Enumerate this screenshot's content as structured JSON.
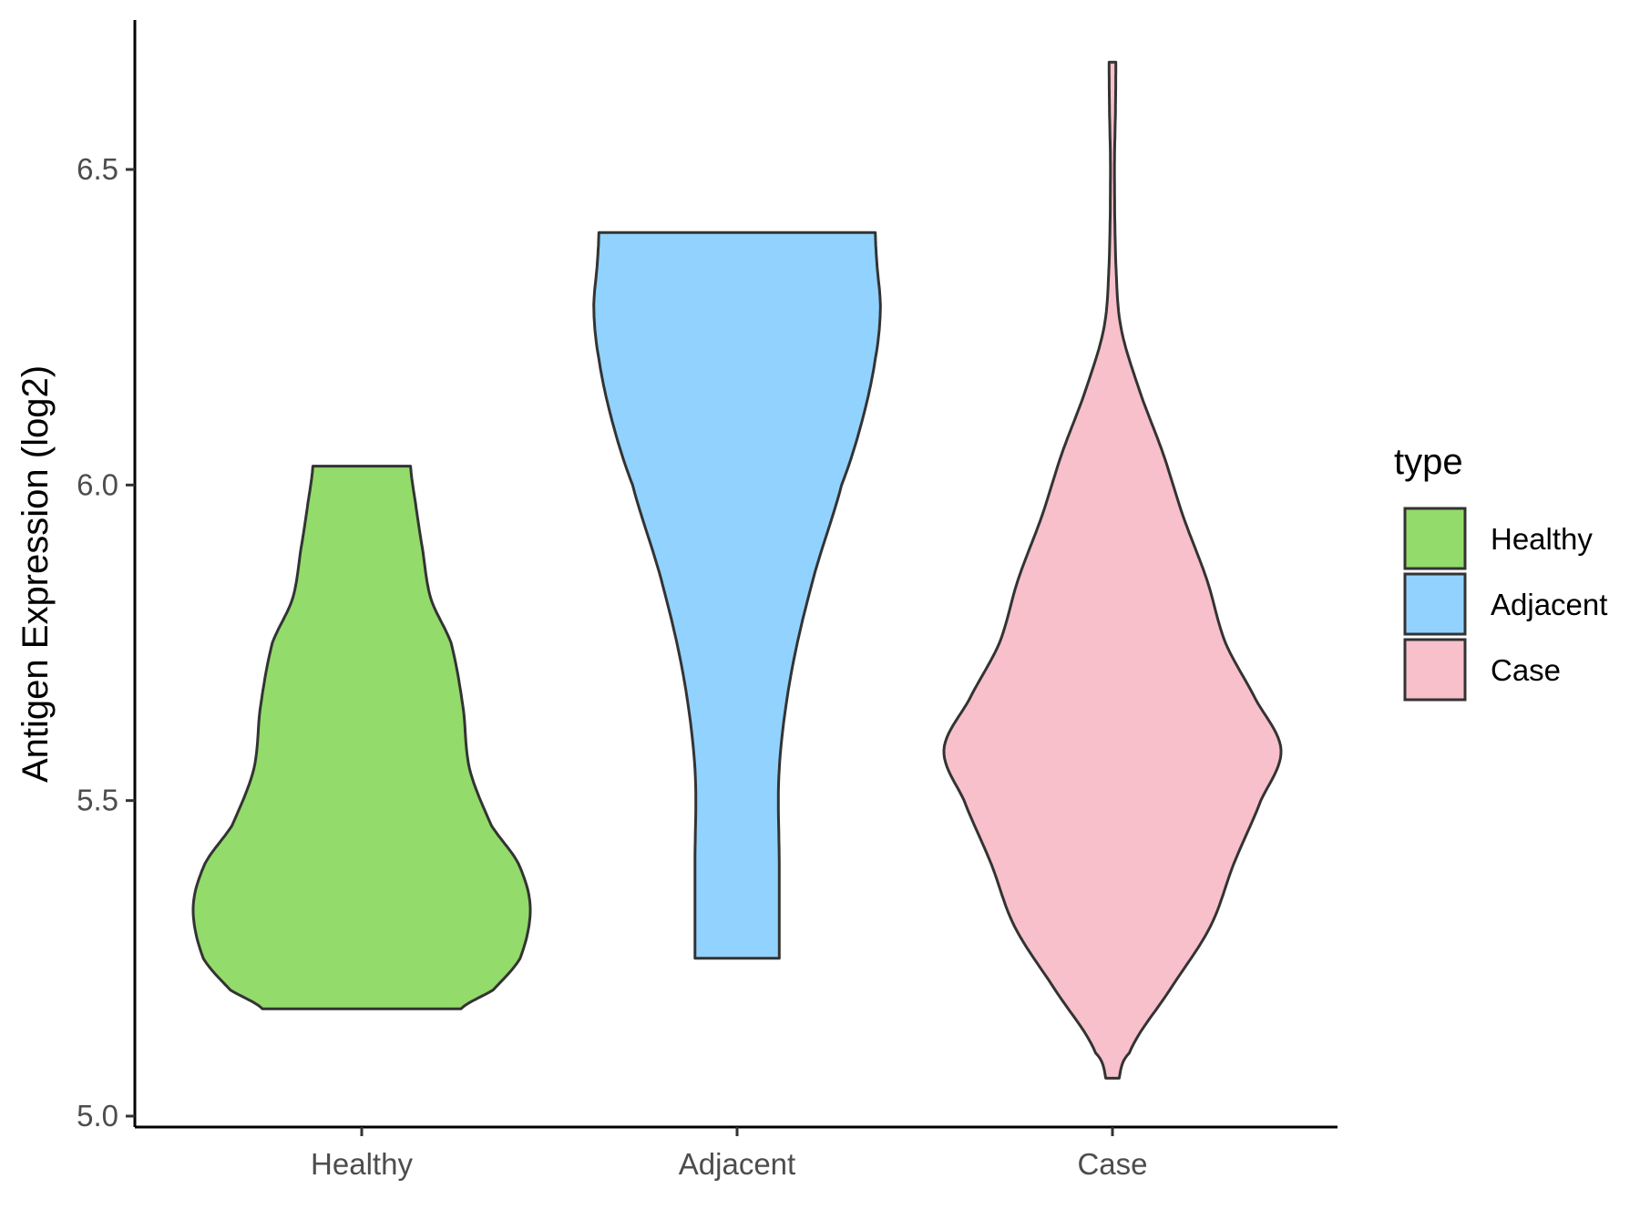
{
  "chart_data": {
    "type": "violin",
    "title": "",
    "xlabel": "",
    "ylabel": "Antigen Expression (log2)",
    "ylim": [
      4.98,
      6.75
    ],
    "yticks": [
      5.0,
      5.5,
      6.0,
      6.5
    ],
    "ytick_labels": [
      "5.0",
      "5.5",
      "6.0",
      "6.5"
    ],
    "categories": [
      "Healthy",
      "Adjacent",
      "Case"
    ],
    "grid": false,
    "legend": {
      "title": "type",
      "placement": "right",
      "entries": [
        "Healthy",
        "Adjacent",
        "Case"
      ]
    },
    "series": [
      {
        "name": "Healthy",
        "color": "#93DB6A",
        "min": 5.17,
        "max": 6.03,
        "density_profile": [
          [
            5.17,
            0.59
          ],
          [
            5.2,
            0.78
          ],
          [
            5.25,
            0.94
          ],
          [
            5.33,
            1.0
          ],
          [
            5.4,
            0.93
          ],
          [
            5.46,
            0.77
          ],
          [
            5.55,
            0.64
          ],
          [
            5.65,
            0.6
          ],
          [
            5.75,
            0.53
          ],
          [
            5.82,
            0.41
          ],
          [
            5.9,
            0.36
          ],
          [
            5.97,
            0.32
          ],
          [
            6.03,
            0.29
          ]
        ]
      },
      {
        "name": "Adjacent",
        "color": "#92D2FF",
        "min": 5.25,
        "max": 6.4,
        "density_profile": [
          [
            5.25,
            0.25
          ],
          [
            5.4,
            0.25
          ],
          [
            5.55,
            0.25
          ],
          [
            5.7,
            0.32
          ],
          [
            5.85,
            0.45
          ],
          [
            6.0,
            0.62
          ],
          [
            6.1,
            0.74
          ],
          [
            6.2,
            0.82
          ],
          [
            6.28,
            0.85
          ],
          [
            6.35,
            0.83
          ],
          [
            6.4,
            0.82
          ]
        ]
      },
      {
        "name": "Case",
        "color": "#F7C0CB",
        "min": 5.06,
        "max": 6.67,
        "density_profile": [
          [
            5.06,
            0.04
          ],
          [
            5.1,
            0.1
          ],
          [
            5.2,
            0.34
          ],
          [
            5.3,
            0.58
          ],
          [
            5.4,
            0.72
          ],
          [
            5.5,
            0.88
          ],
          [
            5.58,
            1.0
          ],
          [
            5.66,
            0.85
          ],
          [
            5.75,
            0.67
          ],
          [
            5.85,
            0.56
          ],
          [
            5.95,
            0.42
          ],
          [
            6.05,
            0.3
          ],
          [
            6.15,
            0.16
          ],
          [
            6.25,
            0.05
          ],
          [
            6.35,
            0.02
          ],
          [
            6.5,
            0.012
          ],
          [
            6.6,
            0.018
          ],
          [
            6.67,
            0.02
          ]
        ]
      }
    ]
  }
}
